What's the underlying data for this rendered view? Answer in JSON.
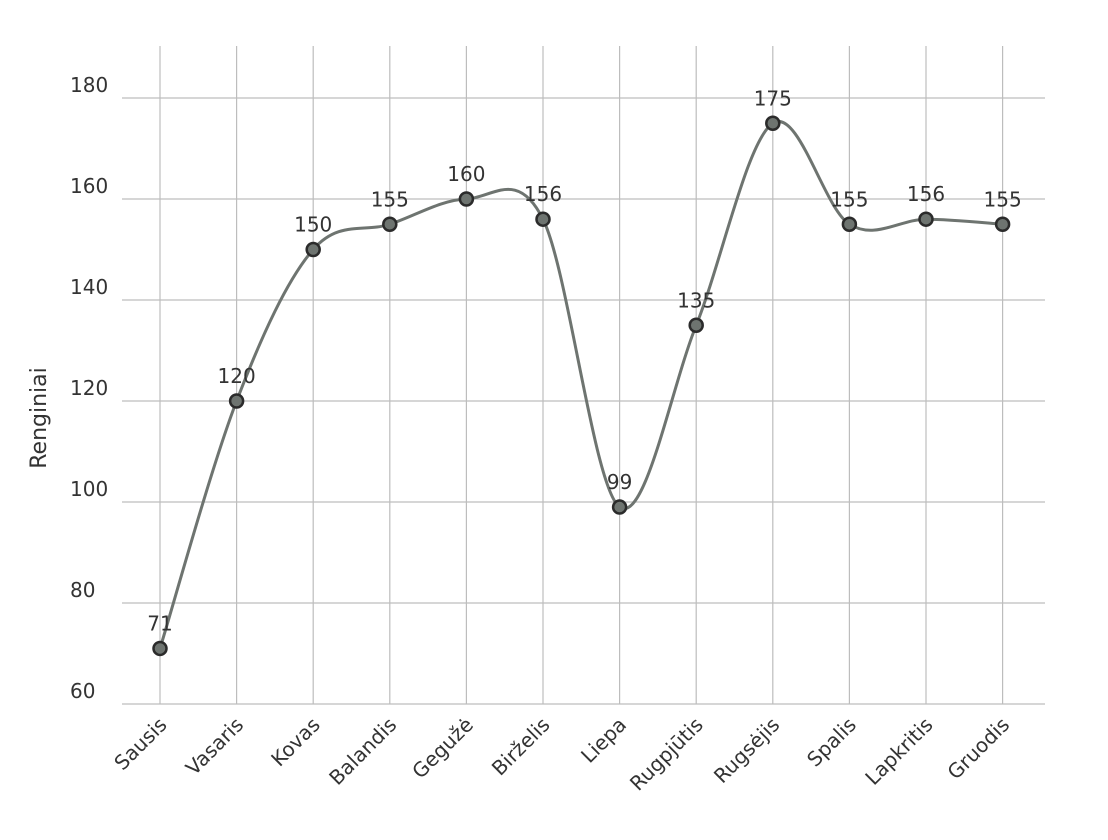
{
  "chart_data": {
    "type": "line",
    "smooth": true,
    "categories": [
      "Sausis",
      "Vasaris",
      "Kovas",
      "Balandis",
      "Gegužė",
      "Birželis",
      "Liepa",
      "Rugpjūtis",
      "Rugsėjis",
      "Spalis",
      "Lapkritis",
      "Gruodis"
    ],
    "series": [
      {
        "values": [
          71,
          120,
          150,
          155,
          160,
          156,
          99,
          135,
          175,
          155,
          156,
          155
        ]
      }
    ],
    "data_labels": [
      "71",
      "120",
      "150",
      "155",
      "160",
      "156",
      "99",
      "135",
      "175",
      "155",
      "156",
      "155"
    ],
    "xlabel": "",
    "ylabel": "Renginiai",
    "ylim": [
      60,
      190
    ],
    "yticks": [
      60,
      80,
      100,
      120,
      140,
      160,
      180
    ],
    "ytick_labels": [
      "60",
      "80",
      "100",
      "120",
      "140",
      "160",
      "180"
    ],
    "grid": true,
    "legend": "none",
    "colors": {
      "line": "#6e7470",
      "marker_fill": "#6e7470",
      "marker_stroke": "#2b2b2b",
      "grid": "#bdbdbd"
    }
  }
}
